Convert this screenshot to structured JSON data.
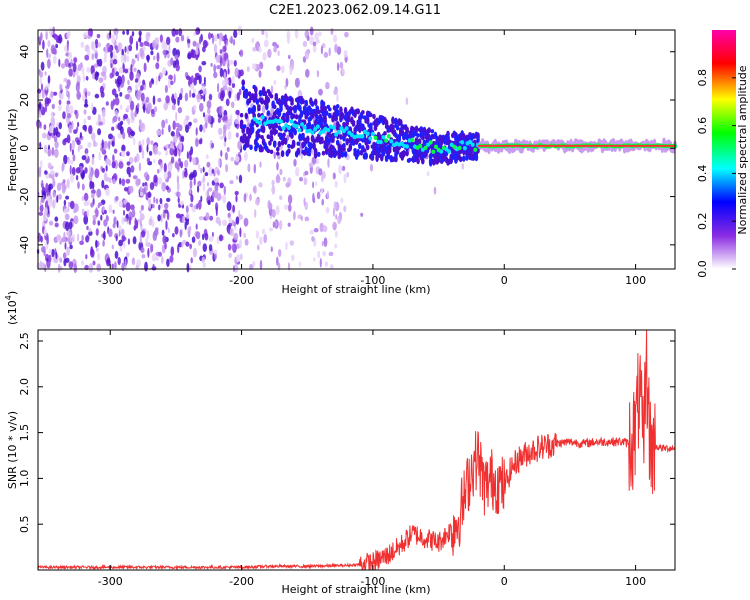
{
  "title": "C2E1.2023.062.09.14.G11",
  "chart_data": [
    {
      "type": "heatmap",
      "xlabel": "Height of straight line (km)",
      "ylabel": "Frequency (Hz)",
      "xlim": [
        -355,
        130
      ],
      "ylim": [
        -50,
        49
      ],
      "x_ticks": [
        -300,
        -200,
        -100,
        0,
        100
      ],
      "y_ticks": [
        -40,
        -20,
        0,
        20,
        40
      ],
      "colorbar": {
        "label": "Normalized spectral amplitude",
        "range": [
          0.0,
          1.0
        ],
        "ticks": [
          0.0,
          0.2,
          0.4,
          0.6,
          0.8
        ],
        "colors": [
          "#ffffff",
          "#8a2be2",
          "#0000ff",
          "#00ffff",
          "#00ff00",
          "#ffff00",
          "#ff0000",
          "#ff00ff"
        ]
      },
      "ridge": [
        {
          "x": -200,
          "y": 14
        },
        {
          "x": -170,
          "y": 10
        },
        {
          "x": -140,
          "y": 8
        },
        {
          "x": -110,
          "y": 6
        },
        {
          "x": -80,
          "y": 3
        },
        {
          "x": -50,
          "y": 0
        },
        {
          "x": -20,
          "y": 1
        },
        {
          "x": 0,
          "y": 1
        },
        {
          "x": 50,
          "y": 1
        },
        {
          "x": 100,
          "y": 1
        },
        {
          "x": 130,
          "y": 1
        }
      ]
    },
    {
      "type": "line",
      "xlabel": "Height of straight line (km)",
      "ylabel": "SNR (10 * v/v)",
      "y_scale_label": "(x10",
      "y_scale_exp": "4",
      "y_scale_suffix": ")",
      "xlim": [
        -355,
        130
      ],
      "ylim": [
        0,
        2.62
      ],
      "x_ticks": [
        -300,
        -200,
        -100,
        0,
        100
      ],
      "y_ticks": [
        0.5,
        1.0,
        1.5,
        2.0,
        2.5
      ],
      "line_color": "#f03030",
      "series": [
        {
          "x": [
            -355,
            -300,
            -250,
            -200,
            -180,
            -150,
            -120,
            -110,
            -100,
            -90,
            -80,
            -70,
            -60,
            -50,
            -40,
            -35,
            -30,
            -25,
            -20,
            -15,
            -10,
            -5,
            0,
            5,
            10,
            20,
            30,
            40,
            50,
            60,
            70,
            80,
            90,
            95,
            100,
            103,
            106,
            108,
            110,
            112,
            115,
            120,
            130
          ],
          "values": [
            0.03,
            0.03,
            0.03,
            0.03,
            0.04,
            0.04,
            0.05,
            0.06,
            0.08,
            0.15,
            0.25,
            0.4,
            0.35,
            0.3,
            0.45,
            0.55,
            0.8,
            1.1,
            1.25,
            0.9,
            1.0,
            0.95,
            0.9,
            1.1,
            1.2,
            1.3,
            1.35,
            1.38,
            1.4,
            1.38,
            1.4,
            1.4,
            1.4,
            1.38,
            1.5,
            2.0,
            1.2,
            2.4,
            1.6,
            1.3,
            1.35,
            1.33,
            1.33
          ]
        }
      ]
    }
  ]
}
